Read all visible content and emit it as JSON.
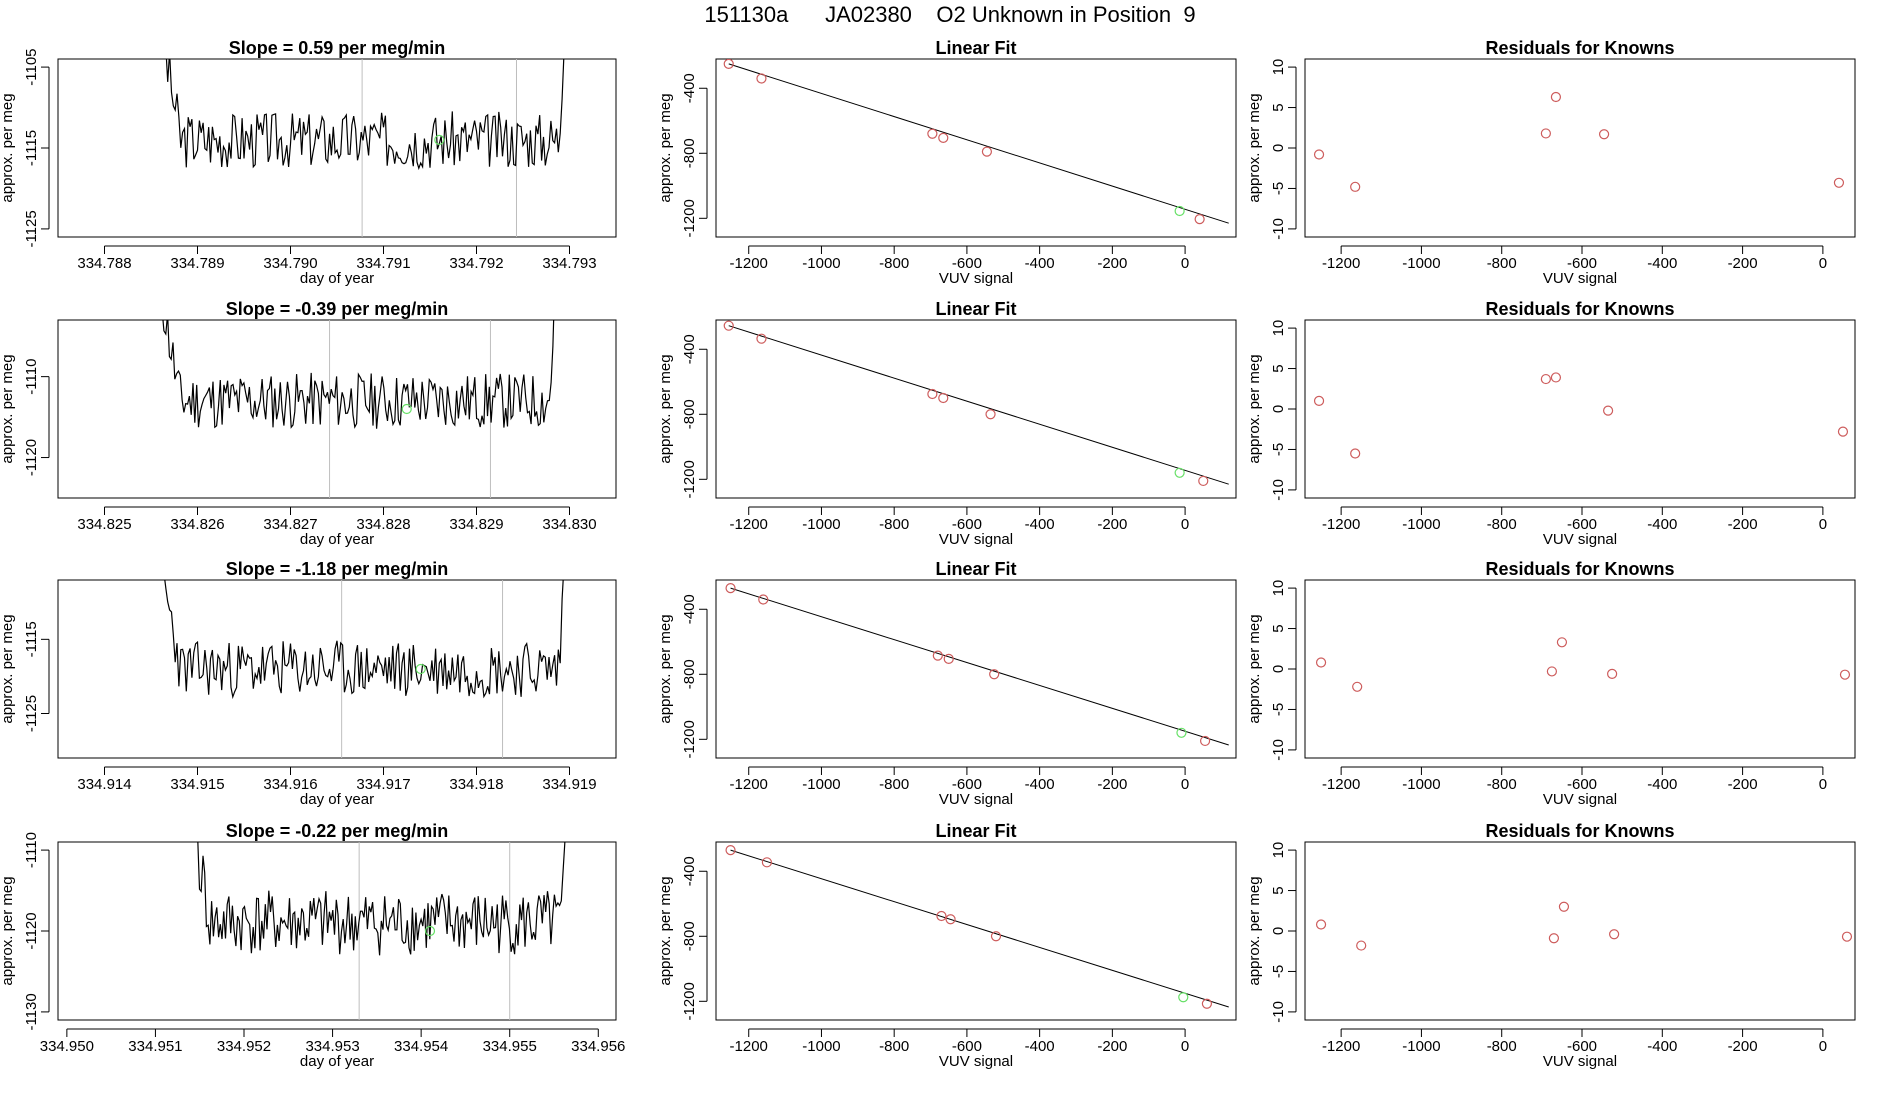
{
  "page": {
    "title": "151130a      JA02380    O2 Unknown in Position  9"
  },
  "colors": {
    "known_point": "#cd5c5c",
    "unknown_point": "#66e066",
    "line": "#000000",
    "divider": "#bebebe"
  },
  "chart_data": [
    {
      "type": "line",
      "row": 0,
      "col": 0,
      "title": "Slope =  0.59  per meg/min",
      "xlabel": "day of year",
      "ylabel": "approx. per meg",
      "xlim": [
        334.7875,
        334.7935
      ],
      "ylim": [
        -1126,
        -1104
      ],
      "xticks": [
        334.788,
        334.789,
        334.79,
        334.791,
        334.792,
        334.793
      ],
      "xtick_labels": [
        "334.788",
        "334.789",
        "334.790",
        "334.791",
        "334.792",
        "334.793"
      ],
      "yticks": [
        -1125,
        -1115,
        -1105
      ],
      "ytick_labels": [
        "-1125",
        "-1115",
        "-1105"
      ],
      "dividers": [
        334.79077,
        334.79243
      ],
      "series_start": 334.7886,
      "series_end": 334.793,
      "baseline": -1114,
      "amplitude": 2.2,
      "seed": 3,
      "green_point": [
        334.7916,
        -1114
      ]
    },
    {
      "type": "scatter",
      "row": 0,
      "col": 1,
      "title": "Linear Fit",
      "xlabel": "VUV signal",
      "ylabel": "approx. per meg",
      "xlim": [
        -1290,
        140
      ],
      "ylim": [
        -1315,
        -220
      ],
      "xticks": [
        -1200,
        -1000,
        -800,
        -600,
        -400,
        -200,
        0
      ],
      "xtick_labels": [
        "-1200",
        "-1000",
        "-800",
        "-600",
        "-400",
        "-200",
        "0"
      ],
      "yticks": [
        -400,
        -800,
        -1200
      ],
      "ytick_labels": [
        "-400",
        "-800",
        "-1200"
      ],
      "fit_line": {
        "x": [
          -1255,
          120
        ],
        "y": [
          -250,
          -1230
        ]
      },
      "known_points": {
        "x": [
          -1255,
          -1165,
          -695,
          -665,
          -545,
          40
        ],
        "y": [
          -250,
          -340,
          -680,
          -705,
          -790,
          -1205
        ]
      },
      "unknown_points": {
        "x": [
          -15
        ],
        "y": [
          -1155
        ]
      }
    },
    {
      "type": "scatter",
      "row": 0,
      "col": 2,
      "title": "Residuals for Knowns",
      "xlabel": "VUV signal",
      "ylabel": "approx. per meg",
      "xlim": [
        -1290,
        80
      ],
      "ylim": [
        -11,
        11
      ],
      "xticks": [
        -1200,
        -1000,
        -800,
        -600,
        -400,
        -200,
        0
      ],
      "xtick_labels": [
        "-1200",
        "-1000",
        "-800",
        "-600",
        "-400",
        "-200",
        "0"
      ],
      "yticks": [
        10,
        5,
        0,
        -5,
        -10
      ],
      "ytick_labels": [
        "10",
        "5",
        "0",
        "-5",
        "-10"
      ],
      "known_points": {
        "x": [
          -1255,
          -1165,
          -690,
          -665,
          -545,
          40
        ],
        "y": [
          -0.8,
          -4.8,
          1.8,
          6.3,
          1.7,
          -4.3
        ]
      }
    },
    {
      "type": "line",
      "row": 1,
      "col": 0,
      "title": "Slope =  -0.39  per meg/min",
      "xlabel": "day of year",
      "ylabel": "approx. per meg",
      "xlim": [
        334.8245,
        334.8305
      ],
      "ylim": [
        -1125,
        -1103
      ],
      "xticks": [
        334.825,
        334.826,
        334.827,
        334.828,
        334.829,
        334.83
      ],
      "xtick_labels": [
        "334.825",
        "334.826",
        "334.827",
        "334.828",
        "334.829",
        "334.830"
      ],
      "yticks": [
        -1120,
        -1110
      ],
      "ytick_labels": [
        "-1120",
        "-1110"
      ],
      "dividers": [
        334.82742,
        334.82915
      ],
      "series_start": 334.8256,
      "series_end": 334.8299,
      "baseline": -1113,
      "amplitude": 2.2,
      "seed": 11,
      "green_point": [
        334.82825,
        -1114
      ]
    },
    {
      "type": "scatter",
      "row": 1,
      "col": 1,
      "title": "Linear Fit",
      "xlabel": "VUV signal",
      "ylabel": "approx. per meg",
      "xlim": [
        -1290,
        140
      ],
      "ylim": [
        -1315,
        -220
      ],
      "xticks": [
        -1200,
        -1000,
        -800,
        -600,
        -400,
        -200,
        0
      ],
      "xtick_labels": [
        "-1200",
        "-1000",
        "-800",
        "-600",
        "-400",
        "-200",
        "0"
      ],
      "yticks": [
        -400,
        -800,
        -1200
      ],
      "ytick_labels": [
        "-400",
        "-800",
        "-1200"
      ],
      "fit_line": {
        "x": [
          -1255,
          120
        ],
        "y": [
          -255,
          -1230
        ]
      },
      "known_points": {
        "x": [
          -1255,
          -1165,
          -695,
          -665,
          -535,
          50
        ],
        "y": [
          -255,
          -335,
          -675,
          -700,
          -800,
          -1210
        ]
      },
      "unknown_points": {
        "x": [
          -15
        ],
        "y": [
          -1160
        ]
      }
    },
    {
      "type": "scatter",
      "row": 1,
      "col": 2,
      "title": "Residuals for Knowns",
      "xlabel": "VUV signal",
      "ylabel": "approx. per meg",
      "xlim": [
        -1290,
        80
      ],
      "ylim": [
        -11,
        11
      ],
      "xticks": [
        -1200,
        -1000,
        -800,
        -600,
        -400,
        -200,
        0
      ],
      "xtick_labels": [
        "-1200",
        "-1000",
        "-800",
        "-600",
        "-400",
        "-200",
        "0"
      ],
      "yticks": [
        10,
        5,
        0,
        -5,
        -10
      ],
      "ytick_labels": [
        "10",
        "5",
        "0",
        "-5",
        "-10"
      ],
      "known_points": {
        "x": [
          -1255,
          -1165,
          -690,
          -665,
          -535,
          50
        ],
        "y": [
          1.0,
          -5.5,
          3.7,
          3.9,
          -0.2,
          -2.8
        ]
      }
    },
    {
      "type": "line",
      "row": 2,
      "col": 0,
      "title": "Slope =  -1.18  per meg/min",
      "xlabel": "day of year",
      "ylabel": "approx. per meg",
      "xlim": [
        334.9135,
        334.9195
      ],
      "ylim": [
        -1131,
        -1107
      ],
      "xticks": [
        334.914,
        334.915,
        334.916,
        334.917,
        334.918,
        334.919
      ],
      "xtick_labels": [
        "334.914",
        "334.915",
        "334.916",
        "334.917",
        "334.918",
        "334.919"
      ],
      "yticks": [
        -1125,
        -1115
      ],
      "ytick_labels": [
        "-1125",
        "-1115"
      ],
      "dividers": [
        334.91655,
        334.91828
      ],
      "series_start": 334.9146,
      "series_end": 334.919,
      "baseline": -1119,
      "amplitude": 2.4,
      "seed": 23,
      "green_point": [
        334.9174,
        -1119
      ]
    },
    {
      "type": "scatter",
      "row": 2,
      "col": 1,
      "title": "Linear Fit",
      "xlabel": "VUV signal",
      "ylabel": "approx. per meg",
      "xlim": [
        -1290,
        140
      ],
      "ylim": [
        -1315,
        -220
      ],
      "xticks": [
        -1200,
        -1000,
        -800,
        -600,
        -400,
        -200,
        0
      ],
      "xtick_labels": [
        "-1200",
        "-1000",
        "-800",
        "-600",
        "-400",
        "-200",
        "0"
      ],
      "yticks": [
        -400,
        -800,
        -1200
      ],
      "ytick_labels": [
        "-400",
        "-800",
        "-1200"
      ],
      "fit_line": {
        "x": [
          -1250,
          120
        ],
        "y": [
          -270,
          -1235
        ]
      },
      "known_points": {
        "x": [
          -1250,
          -1160,
          -680,
          -650,
          -525,
          55
        ],
        "y": [
          -270,
          -340,
          -685,
          -705,
          -800,
          -1210
        ]
      },
      "unknown_points": {
        "x": [
          -10
        ],
        "y": [
          -1160
        ]
      }
    },
    {
      "type": "scatter",
      "row": 2,
      "col": 2,
      "title": "Residuals for Knowns",
      "xlabel": "VUV signal",
      "ylabel": "approx. per meg",
      "xlim": [
        -1290,
        80
      ],
      "ylim": [
        -11,
        11
      ],
      "xticks": [
        -1200,
        -1000,
        -800,
        -600,
        -400,
        -200,
        0
      ],
      "xtick_labels": [
        "-1200",
        "-1000",
        "-800",
        "-600",
        "-400",
        "-200",
        "0"
      ],
      "yticks": [
        10,
        5,
        0,
        -5,
        -10
      ],
      "ytick_labels": [
        "10",
        "5",
        "0",
        "-5",
        "-10"
      ],
      "known_points": {
        "x": [
          -1250,
          -1160,
          -675,
          -650,
          -525,
          55
        ],
        "y": [
          0.8,
          -2.2,
          -0.3,
          3.3,
          -0.6,
          -0.7
        ]
      }
    },
    {
      "type": "line",
      "row": 3,
      "col": 0,
      "title": "Slope =  -0.22  per meg/min",
      "xlabel": "day of year",
      "ylabel": "approx. per meg",
      "xlim": [
        334.9499,
        334.9562
      ],
      "ylim": [
        -1131,
        -1109
      ],
      "xticks": [
        334.95,
        334.951,
        334.952,
        334.953,
        334.954,
        334.955,
        334.956
      ],
      "xtick_labels": [
        "334.950",
        "334.951",
        "334.952",
        "334.953",
        "334.954",
        "334.955",
        "334.956"
      ],
      "yticks": [
        -1130,
        -1120,
        -1110
      ],
      "ytick_labels": [
        "-1130",
        "-1120",
        "-1110"
      ],
      "dividers": [
        334.9533,
        334.955
      ],
      "series_start": 334.9514,
      "series_end": 334.9557,
      "baseline": -1119,
      "amplitude": 2.5,
      "seed": 41,
      "green_point": [
        334.9541,
        -1120
      ]
    },
    {
      "type": "scatter",
      "row": 3,
      "col": 1,
      "title": "Linear Fit",
      "xlabel": "VUV signal",
      "ylabel": "approx. per meg",
      "xlim": [
        -1290,
        140
      ],
      "ylim": [
        -1315,
        -220
      ],
      "xticks": [
        -1200,
        -1000,
        -800,
        -600,
        -400,
        -200,
        0
      ],
      "xtick_labels": [
        "-1200",
        "-1000",
        "-800",
        "-600",
        "-400",
        "-200",
        "0"
      ],
      "yticks": [
        -400,
        -800,
        -1200
      ],
      "ytick_labels": [
        "-400",
        "-800",
        "-1200"
      ],
      "fit_line": {
        "x": [
          -1250,
          120
        ],
        "y": [
          -270,
          -1235
        ]
      },
      "known_points": {
        "x": [
          -1250,
          -1150,
          -670,
          -645,
          -520,
          60
        ],
        "y": [
          -270,
          -345,
          -675,
          -695,
          -800,
          -1215
        ]
      },
      "unknown_points": {
        "x": [
          -5
        ],
        "y": [
          -1175
        ]
      }
    },
    {
      "type": "scatter",
      "row": 3,
      "col": 2,
      "title": "Residuals for Knowns",
      "xlabel": "VUV signal",
      "ylabel": "approx. per meg",
      "xlim": [
        -1290,
        80
      ],
      "ylim": [
        -11,
        11
      ],
      "xticks": [
        -1200,
        -1000,
        -800,
        -600,
        -400,
        -200,
        0
      ],
      "xtick_labels": [
        "-1200",
        "-1000",
        "-800",
        "-600",
        "-400",
        "-200",
        "0"
      ],
      "yticks": [
        10,
        5,
        0,
        -5,
        -10
      ],
      "ytick_labels": [
        "10",
        "5",
        "0",
        "-5",
        "-10"
      ],
      "known_points": {
        "x": [
          -1250,
          -1150,
          -670,
          -645,
          -520,
          60
        ],
        "y": [
          0.8,
          -1.8,
          -0.9,
          3.0,
          -0.4,
          -0.7
        ]
      }
    }
  ]
}
